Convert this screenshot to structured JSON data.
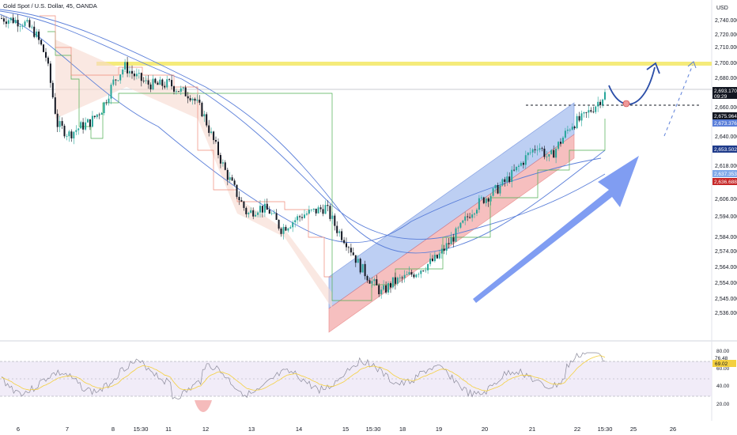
{
  "header": {
    "title": "Gold Spot / U.S. Dollar, 45, OANDA",
    "currency": "USD"
  },
  "colors": {
    "up": "#26a69a",
    "down": "#131722",
    "ma_blue": "#5b7fd9",
    "channel_blue": "#a7c0ef",
    "channel_red": "#f3aaaa",
    "resistance_yellow": "#f4e96b",
    "support_green": "#4caf50",
    "rsi_line": "#8a8a9a",
    "rsi_ma": "#f4d03f",
    "arrow_blue": "#6a8cf0"
  },
  "chart_data": {
    "type": "candlestick",
    "title": "Gold Spot / U.S. Dollar, 45, OANDA",
    "price_axis": {
      "unit": "USD",
      "ylim": [
        2530,
        2750
      ],
      "ticks": [
        "2,740.000",
        "2,720.000",
        "2,710.000",
        "2,700.000",
        "2,680.000",
        "2,660.000",
        "2,640.000",
        "2,618.000",
        "2,606.000",
        "2,594.000",
        "2,584.000",
        "2,574.000",
        "2,564.000",
        "2,554.000",
        "2,545.000",
        "2,536.000"
      ]
    },
    "price_badges": [
      {
        "label": "2,693.170",
        "sub": "09:29",
        "color": "#131722"
      },
      {
        "label": "2,675.964",
        "color": "#131722"
      },
      {
        "label": "2,673.376",
        "color": "#5b7fd9"
      },
      {
        "label": "2,653.502",
        "color": "#1e3a8a"
      },
      {
        "label": "2,637.353",
        "color": "#7fa8e8"
      },
      {
        "label": "2,636.688",
        "color": "#c62828"
      }
    ],
    "x_ticks": [
      "6",
      "7",
      "8",
      "15:30",
      "11",
      "12",
      "13",
      "14",
      "15",
      "15:30",
      "18",
      "19",
      "20",
      "21",
      "22",
      "15:30",
      "25",
      "26"
    ],
    "price_series_approx": [
      2745,
      2744,
      2742,
      2735,
      2718,
      2672,
      2665,
      2670,
      2674,
      2683,
      2701,
      2712,
      2705,
      2700,
      2699,
      2700,
      2695,
      2692,
      2680,
      2660,
      2640,
      2625,
      2610,
      2615,
      2612,
      2600,
      2605,
      2610,
      2612,
      2615,
      2600,
      2590,
      2575,
      2565,
      2556,
      2563,
      2566,
      2570,
      2575,
      2580,
      2590,
      2600,
      2612,
      2620,
      2625,
      2632,
      2640,
      2650,
      2658,
      2648,
      2660,
      2672,
      2676,
      2684,
      2693
    ],
    "resistance_level": 2710,
    "dashed_level": 2683,
    "rsi": {
      "ylim": [
        10,
        90
      ],
      "ticks": [
        "80.00",
        "60.00",
        "40.00",
        "20.00"
      ],
      "values": [
        "76.48",
        "69.02"
      ]
    }
  }
}
